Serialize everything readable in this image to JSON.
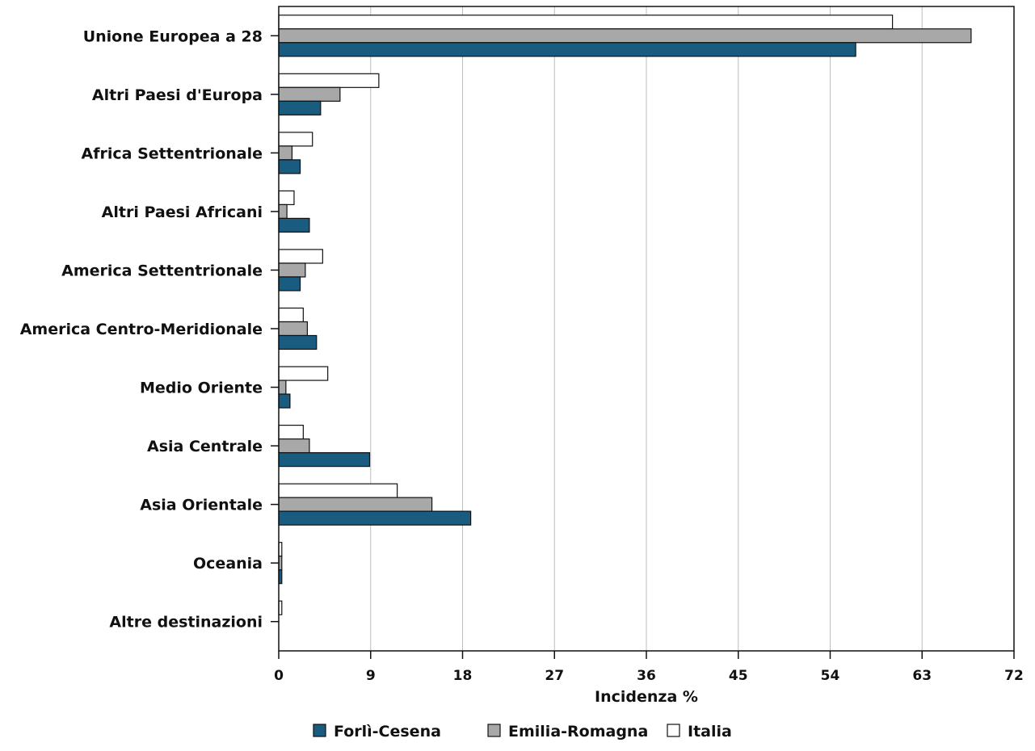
{
  "chart_data": {
    "type": "bar",
    "orientation": "horizontal",
    "categories": [
      "Unione Europea a 28",
      "Altri Paesi d'Europa",
      "Africa Settentrionale",
      "Altri Paesi Africani",
      "America Settentrionale",
      "America Centro-Meridionale",
      "Medio Oriente",
      "Asia Centrale",
      "Asia Orientale",
      "Oceania",
      "Altre destinazioni"
    ],
    "series": [
      {
        "name": "Forlì-Cesena",
        "color": "#1a5b80",
        "values": [
          56.5,
          4.1,
          2.1,
          3.0,
          2.1,
          3.7,
          1.1,
          8.9,
          18.8,
          0.3,
          0.0
        ]
      },
      {
        "name": "Emilia-Romagna",
        "color": "#a8a8a8",
        "values": [
          67.8,
          6.0,
          1.3,
          0.8,
          2.6,
          2.8,
          0.7,
          3.0,
          15.0,
          0.3,
          0.0
        ]
      },
      {
        "name": "Italia",
        "color": "#ffffff",
        "values": [
          60.1,
          9.8,
          3.3,
          1.5,
          4.3,
          2.4,
          4.8,
          2.4,
          11.6,
          0.3,
          0.3
        ]
      }
    ],
    "xlabel": "Incidenza %",
    "xticks": [
      0,
      9,
      18,
      27,
      36,
      45,
      54,
      63,
      72
    ],
    "xlim": [
      0,
      72
    ],
    "grid": "vertical",
    "legend": "bottom"
  }
}
